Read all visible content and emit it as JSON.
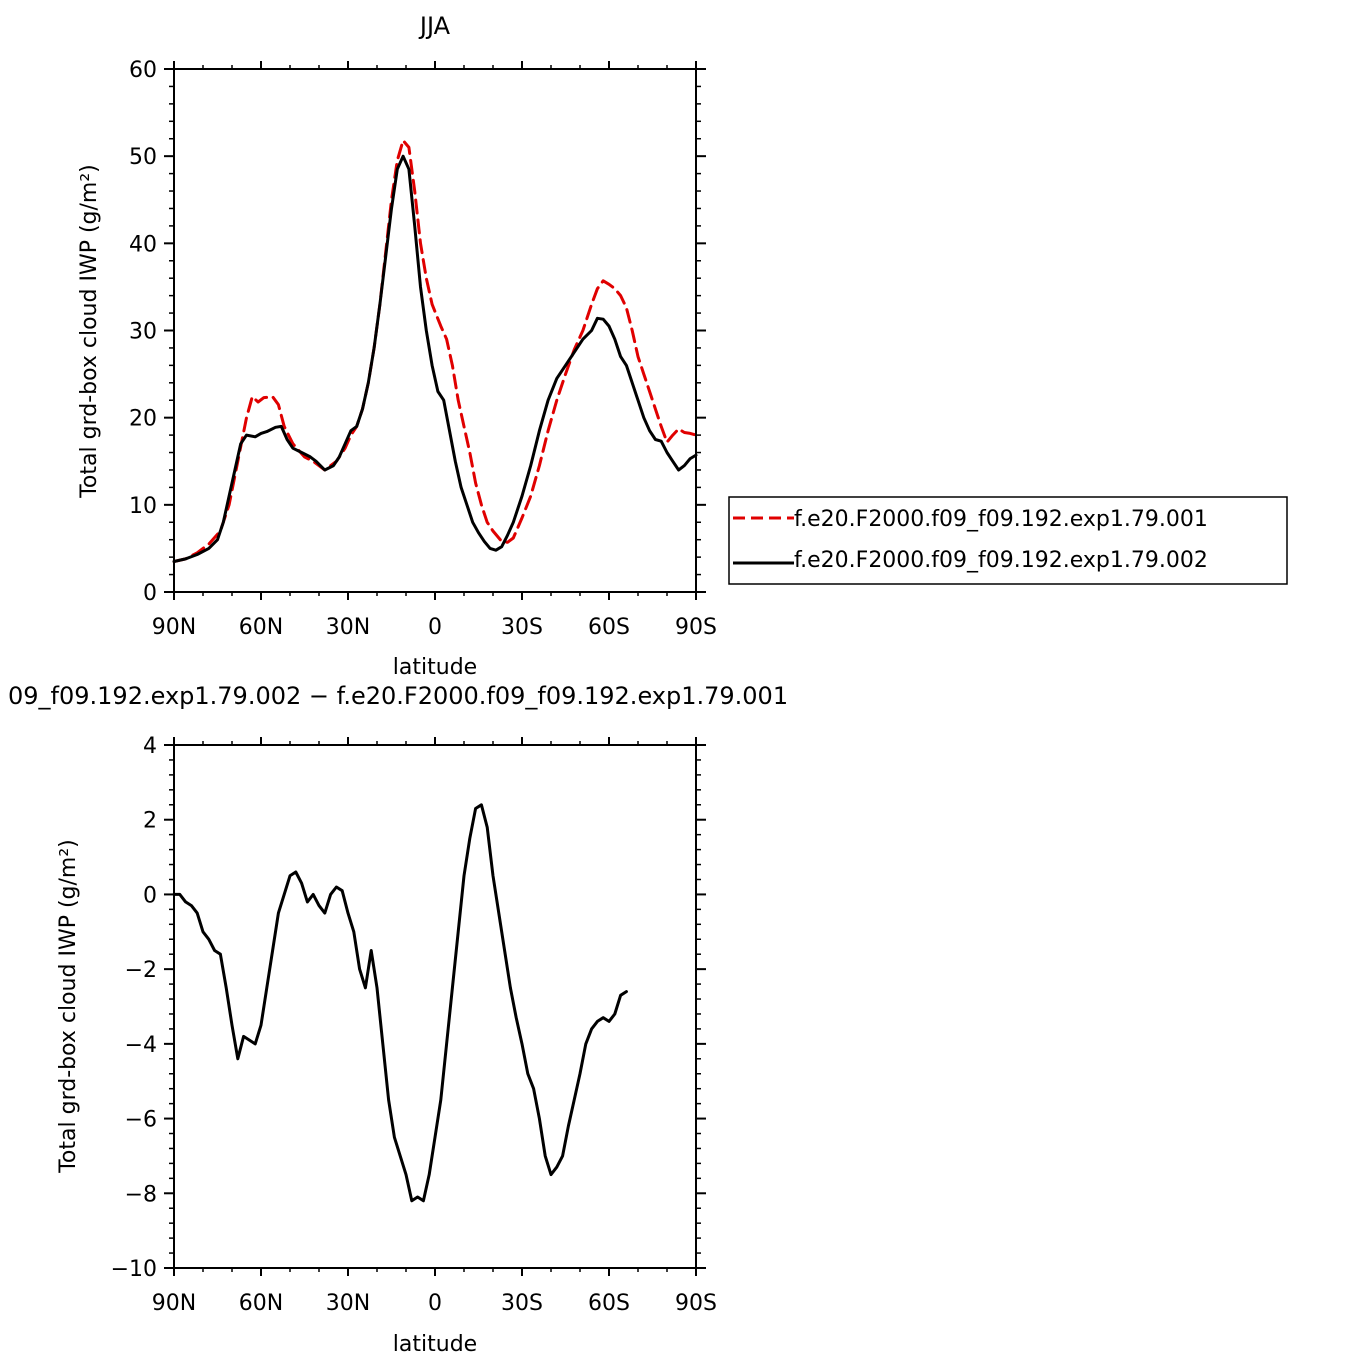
{
  "chart_data": [
    {
      "type": "line",
      "title": "JJA",
      "xlabel": "latitude",
      "ylabel": "Total grd-box cloud IWP (g/m²)",
      "xlim": [
        -90,
        90
      ],
      "ylim": [
        0,
        60
      ],
      "xticks": [
        {
          "value": -90,
          "label": "90N"
        },
        {
          "value": -60,
          "label": "60N"
        },
        {
          "value": -30,
          "label": "30N"
        },
        {
          "value": 0,
          "label": "0"
        },
        {
          "value": 30,
          "label": "30S"
        },
        {
          "value": 60,
          "label": "60S"
        },
        {
          "value": 90,
          "label": "90S"
        }
      ],
      "yticks": [
        0,
        10,
        20,
        30,
        40,
        50,
        60
      ],
      "grid": false,
      "legend": "right",
      "series": [
        {
          "name": "f.e20.F2000.f09_f09.192.exp1.79.001",
          "color": "#e00000",
          "dash": "dashed",
          "points": [
            [
              -90,
              3.5
            ],
            [
              -86,
              3.8
            ],
            [
              -82,
              4.5
            ],
            [
              -78,
              5.5
            ],
            [
              -74,
              7.0
            ],
            [
              -71,
              10.0
            ],
            [
              -68,
              15.0
            ],
            [
              -65,
              20.0
            ],
            [
              -63,
              22.4
            ],
            [
              -61,
              21.8
            ],
            [
              -59,
              22.3
            ],
            [
              -56,
              22.4
            ],
            [
              -54,
              21.5
            ],
            [
              -52,
              19.0
            ],
            [
              -49,
              17.0
            ],
            [
              -45,
              15.5
            ],
            [
              -42,
              15.0
            ],
            [
              -38,
              14.0
            ],
            [
              -34,
              15.0
            ],
            [
              -31,
              16.5
            ],
            [
              -29,
              18.0
            ],
            [
              -27,
              19.0
            ],
            [
              -25,
              21.0
            ],
            [
              -23,
              24.0
            ],
            [
              -21,
              28.0
            ],
            [
              -19,
              33.0
            ],
            [
              -17,
              39.0
            ],
            [
              -15,
              45.0
            ],
            [
              -13,
              49.5
            ],
            [
              -11,
              51.8
            ],
            [
              -9,
              51.0
            ],
            [
              -7,
              46.0
            ],
            [
              -5,
              40.0
            ],
            [
              -3,
              36.0
            ],
            [
              -1,
              33.0
            ],
            [
              2,
              30.5
            ],
            [
              4,
              29.0
            ],
            [
              6,
              26.0
            ],
            [
              8,
              22.0
            ],
            [
              10,
              19.0
            ],
            [
              12,
              16.0
            ],
            [
              14,
              12.5
            ],
            [
              16,
              10.0
            ],
            [
              18,
              8.0
            ],
            [
              20,
              7.0
            ],
            [
              23,
              5.8
            ],
            [
              25,
              5.7
            ],
            [
              27,
              6.2
            ],
            [
              30,
              8.5
            ],
            [
              33,
              11.0
            ],
            [
              36,
              14.5
            ],
            [
              39,
              18.5
            ],
            [
              42,
              22.0
            ],
            [
              45,
              25.0
            ],
            [
              48,
              27.8
            ],
            [
              51,
              30.0
            ],
            [
              54,
              33.0
            ],
            [
              56,
              34.8
            ],
            [
              58,
              35.7
            ],
            [
              60,
              35.3
            ],
            [
              62,
              34.8
            ],
            [
              64,
              34.0
            ],
            [
              66,
              32.6
            ],
            [
              68,
              30.0
            ],
            [
              70,
              27.0
            ],
            [
              72,
              25.0
            ],
            [
              74,
              23.0
            ],
            [
              76,
              21.0
            ],
            [
              78,
              19.0
            ],
            [
              80,
              17.2
            ],
            [
              82,
              18.0
            ],
            [
              84,
              18.7
            ],
            [
              86,
              18.3
            ],
            [
              88,
              18.2
            ],
            [
              90,
              18.0
            ]
          ]
        },
        {
          "name": "f.e20.F2000.f09_f09.192.exp1.79.002",
          "color": "#000000",
          "dash": "solid",
          "points": [
            [
              -90,
              3.5
            ],
            [
              -86,
              3.8
            ],
            [
              -82,
              4.3
            ],
            [
              -78,
              5.0
            ],
            [
              -75,
              6.0
            ],
            [
              -73,
              8.0
            ],
            [
              -71,
              11.0
            ],
            [
              -69,
              14.0
            ],
            [
              -67,
              17.0
            ],
            [
              -65,
              18.0
            ],
            [
              -62,
              17.8
            ],
            [
              -60,
              18.2
            ],
            [
              -58,
              18.4
            ],
            [
              -55,
              18.9
            ],
            [
              -53,
              19.0
            ],
            [
              -51,
              17.5
            ],
            [
              -49,
              16.5
            ],
            [
              -46,
              16.0
            ],
            [
              -43,
              15.5
            ],
            [
              -41,
              15.0
            ],
            [
              -38,
              14.0
            ],
            [
              -35,
              14.5
            ],
            [
              -33,
              15.5
            ],
            [
              -31,
              17.0
            ],
            [
              -29,
              18.5
            ],
            [
              -27,
              19.0
            ],
            [
              -25,
              21.0
            ],
            [
              -23,
              24.0
            ],
            [
              -21,
              28.0
            ],
            [
              -19,
              33.0
            ],
            [
              -17,
              38.5
            ],
            [
              -15,
              44.0
            ],
            [
              -13,
              48.5
            ],
            [
              -11,
              50.0
            ],
            [
              -9,
              48.5
            ],
            [
              -7,
              42.0
            ],
            [
              -5,
              35.0
            ],
            [
              -3,
              30.0
            ],
            [
              -1,
              26.0
            ],
            [
              1,
              23.0
            ],
            [
              3,
              22.0
            ],
            [
              5,
              18.5
            ],
            [
              7,
              15.0
            ],
            [
              9,
              12.0
            ],
            [
              11,
              10.0
            ],
            [
              13,
              8.0
            ],
            [
              15,
              6.8
            ],
            [
              17,
              5.8
            ],
            [
              19,
              5.0
            ],
            [
              21,
              4.8
            ],
            [
              23,
              5.2
            ],
            [
              25,
              6.5
            ],
            [
              27,
              8.0
            ],
            [
              30,
              11.0
            ],
            [
              33,
              14.5
            ],
            [
              36,
              18.5
            ],
            [
              39,
              22.0
            ],
            [
              42,
              24.5
            ],
            [
              45,
              26.0
            ],
            [
              48,
              27.5
            ],
            [
              51,
              29.0
            ],
            [
              54,
              30.0
            ],
            [
              56,
              31.4
            ],
            [
              58,
              31.3
            ],
            [
              60,
              30.5
            ],
            [
              62,
              29.0
            ],
            [
              64,
              27.0
            ],
            [
              66,
              26.0
            ],
            [
              68,
              24.0
            ],
            [
              70,
              22.0
            ],
            [
              72,
              20.0
            ],
            [
              74,
              18.5
            ],
            [
              76,
              17.5
            ],
            [
              78,
              17.3
            ],
            [
              80,
              16.0
            ],
            [
              82,
              15.0
            ],
            [
              84,
              14.0
            ],
            [
              86,
              14.5
            ],
            [
              88,
              15.3
            ],
            [
              90,
              15.7
            ]
          ]
        }
      ]
    },
    {
      "type": "line",
      "title": "09_f09.192.exp1.79.002 − f.e20.F2000.f09_f09.192.exp1.79.001",
      "xlabel": "latitude",
      "ylabel": "Total grd-box cloud IWP (g/m²)",
      "xlim": [
        -90,
        90
      ],
      "ylim": [
        -10,
        4
      ],
      "xticks": [
        {
          "value": -90,
          "label": "90N"
        },
        {
          "value": -60,
          "label": "60N"
        },
        {
          "value": -30,
          "label": "30N"
        },
        {
          "value": 0,
          "label": "0"
        },
        {
          "value": 30,
          "label": "30S"
        },
        {
          "value": 60,
          "label": "60S"
        },
        {
          "value": 90,
          "label": "90S"
        }
      ],
      "yticks": [
        -10,
        -8,
        -6,
        -4,
        -2,
        0,
        2,
        4
      ],
      "grid": false,
      "series": [
        {
          "color": "#000000",
          "dash": "solid",
          "points": [
            [
              -90,
              0.0
            ],
            [
              -88,
              0.0
            ],
            [
              -86,
              -0.2
            ],
            [
              -84,
              -0.3
            ],
            [
              -82,
              -0.5
            ],
            [
              -80,
              -1.0
            ],
            [
              -78,
              -1.2
            ],
            [
              -76,
              -1.5
            ],
            [
              -74,
              -1.6
            ],
            [
              -72,
              -2.5
            ],
            [
              -70,
              -3.5
            ],
            [
              -68,
              -4.4
            ],
            [
              -66,
              -3.8
            ],
            [
              -64,
              -3.9
            ],
            [
              -62,
              -4.0
            ],
            [
              -60,
              -3.5
            ],
            [
              -58,
              -2.5
            ],
            [
              -56,
              -1.5
            ],
            [
              -54,
              -0.5
            ],
            [
              -52,
              0.0
            ],
            [
              -50,
              0.5
            ],
            [
              -48,
              0.6
            ],
            [
              -46,
              0.3
            ],
            [
              -44,
              -0.2
            ],
            [
              -42,
              0.0
            ],
            [
              -40,
              -0.3
            ],
            [
              -38,
              -0.5
            ],
            [
              -36,
              0.0
            ],
            [
              -34,
              0.2
            ],
            [
              -32,
              0.1
            ],
            [
              -30,
              -0.5
            ],
            [
              -28,
              -1.0
            ],
            [
              -26,
              -2.0
            ],
            [
              -24,
              -2.5
            ],
            [
              -22,
              -1.5
            ],
            [
              -20,
              -2.5
            ],
            [
              -18,
              -4.0
            ],
            [
              -16,
              -5.5
            ],
            [
              -14,
              -6.5
            ],
            [
              -12,
              -7.0
            ],
            [
              -10,
              -7.5
            ],
            [
              -8,
              -8.2
            ],
            [
              -6,
              -8.1
            ],
            [
              -4,
              -8.2
            ],
            [
              -2,
              -7.5
            ],
            [
              0,
              -6.5
            ],
            [
              2,
              -5.5
            ],
            [
              4,
              -4.0
            ],
            [
              6,
              -2.5
            ],
            [
              8,
              -1.0
            ],
            [
              10,
              0.5
            ],
            [
              12,
              1.5
            ],
            [
              14,
              2.3
            ],
            [
              16,
              2.4
            ],
            [
              18,
              1.8
            ],
            [
              20,
              0.5
            ],
            [
              22,
              -0.5
            ],
            [
              24,
              -1.5
            ],
            [
              26,
              -2.5
            ],
            [
              28,
              -3.3
            ],
            [
              30,
              -4.0
            ],
            [
              32,
              -4.8
            ],
            [
              34,
              -5.2
            ],
            [
              36,
              -6.0
            ],
            [
              38,
              -7.0
            ],
            [
              40,
              -7.5
            ],
            [
              42,
              -7.3
            ],
            [
              44,
              -7.0
            ],
            [
              46,
              -6.2
            ],
            [
              48,
              -5.5
            ],
            [
              50,
              -4.8
            ],
            [
              52,
              -4.0
            ],
            [
              54,
              -3.6
            ],
            [
              56,
              -3.4
            ],
            [
              58,
              -3.3
            ],
            [
              60,
              -3.4
            ],
            [
              62,
              -3.2
            ],
            [
              64,
              -2.7
            ],
            [
              66,
              -2.6
            ]
          ]
        }
      ]
    }
  ]
}
